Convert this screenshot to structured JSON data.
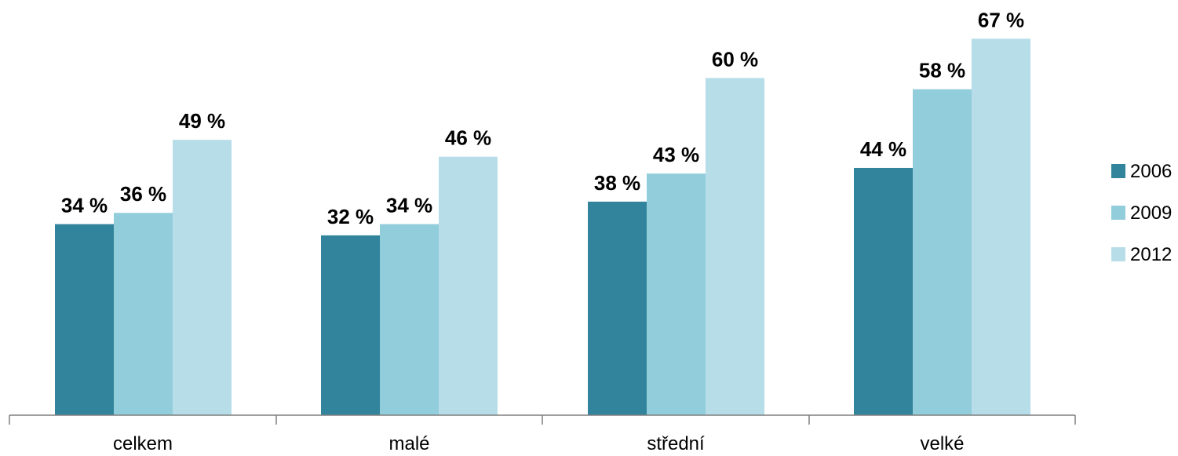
{
  "chart_data": {
    "type": "bar",
    "categories": [
      "celkem",
      "malé",
      "střední",
      "velké"
    ],
    "series": [
      {
        "name": "2006",
        "values": [
          34,
          32,
          38,
          44
        ],
        "labels": [
          "34 %",
          "32 %",
          "38 %",
          "44 %"
        ],
        "color": "#31849b"
      },
      {
        "name": "2009",
        "values": [
          36,
          34,
          43,
          58
        ],
        "labels": [
          "36 %",
          "34 %",
          "43 %",
          "58 %"
        ],
        "color": "#92cddc"
      },
      {
        "name": "2012",
        "values": [
          49,
          46,
          60,
          67
        ],
        "labels": [
          "49 %",
          "46 %",
          "60 %",
          "67 %"
        ],
        "color": "#b7dee8"
      }
    ],
    "title": "",
    "xlabel": "",
    "ylabel": "",
    "ylim": [
      0,
      70
    ],
    "grid": false,
    "legend": "right"
  }
}
